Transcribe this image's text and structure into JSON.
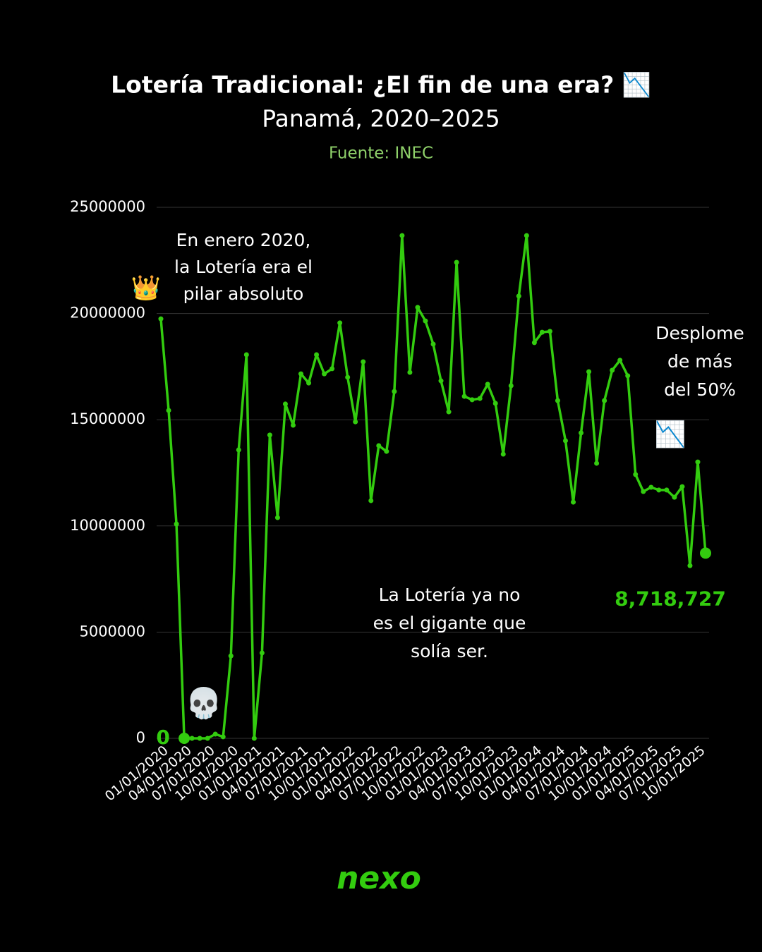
{
  "chart_data": {
    "type": "line",
    "title": "Lotería Tradicional: ¿El fin de una era? 📉",
    "subtitle": "Panamá, 2020–2025",
    "source": "Fuente: INEC",
    "categories": [
      "01/01/2020",
      null,
      null,
      "04/01/2020",
      null,
      null,
      "07/01/2020",
      null,
      null,
      "10/01/2020",
      null,
      null,
      "01/01/2021",
      null,
      null,
      "04/01/2021",
      null,
      null,
      "07/01/2021",
      null,
      null,
      "10/01/2021",
      null,
      null,
      "01/01/2022",
      null,
      null,
      "04/01/2022",
      null,
      null,
      "07/01/2022",
      null,
      null,
      "10/01/2022",
      null,
      null,
      "01/01/2023",
      null,
      null,
      "04/01/2023",
      null,
      null,
      "07/01/2023",
      null,
      null,
      "10/01/2023",
      null,
      null,
      "01/01/2024",
      null,
      null,
      "04/01/2024",
      null,
      null,
      "07/01/2024",
      null,
      null,
      "10/01/2024",
      null,
      null,
      "01/01/2025",
      null,
      null,
      "04/01/2025",
      null,
      null,
      "07/01/2025",
      null,
      null,
      "10/01/2025",
      null
    ],
    "series": [
      {
        "name": "Lotería Tradicional",
        "color": "#33cc0f",
        "values": [
          19750000,
          15440000,
          10090000,
          0,
          0,
          0,
          0,
          200000,
          70000,
          3880000,
          13580000,
          18060000,
          0,
          4020000,
          14280000,
          10390000,
          15740000,
          14740000,
          17160000,
          16730000,
          18060000,
          17160000,
          17400000,
          19560000,
          17000000,
          14900000,
          17730000,
          11190000,
          13780000,
          13510000,
          16330000,
          23670000,
          17230000,
          20290000,
          19650000,
          18560000,
          16830000,
          15370000,
          22410000,
          16100000,
          15940000,
          16000000,
          16670000,
          15770000,
          13380000,
          16600000,
          20820000,
          23670000,
          18630000,
          19120000,
          19160000,
          15900000,
          14010000,
          11120000,
          14380000,
          17260000,
          12950000,
          15900000,
          17330000,
          17800000,
          17070000,
          12420000,
          11620000,
          11820000,
          11690000,
          11690000,
          11350000,
          11850000,
          8130000,
          13010000,
          8718727
        ],
        "value_labels": [
          null,
          null,
          null,
          "0",
          null,
          null,
          null,
          null,
          null,
          null,
          null,
          null,
          null,
          null,
          null,
          null,
          null,
          null,
          null,
          null,
          null,
          null,
          null,
          null,
          null,
          null,
          null,
          null,
          null,
          null,
          null,
          null,
          null,
          null,
          null,
          null,
          null,
          null,
          null,
          null,
          null,
          null,
          null,
          null,
          null,
          null,
          null,
          null,
          null,
          null,
          null,
          null,
          null,
          null,
          null,
          null,
          null,
          null,
          null,
          null,
          null,
          null,
          null,
          null,
          null,
          null,
          null,
          null,
          null,
          null,
          "8,718,727"
        ]
      }
    ],
    "ylim": [
      0,
      25000000
    ],
    "yticks": [
      0,
      5000000,
      10000000,
      15000000,
      20000000,
      25000000
    ],
    "grid": true,
    "annotations": [
      {
        "lines": [
          "En enero 2020,",
          "la Lotería era el",
          "pilar absoluto"
        ]
      },
      {
        "lines": [
          "👑"
        ]
      },
      {
        "lines": [
          "💀"
        ]
      },
      {
        "lines": [
          "La Lotería ya no",
          "es el gigante que",
          "solía ser."
        ]
      },
      {
        "lines": [
          "Desplome",
          "de más",
          "del 50%"
        ]
      },
      {
        "lines": [
          "📉"
        ]
      }
    ],
    "logo": "nexo"
  }
}
